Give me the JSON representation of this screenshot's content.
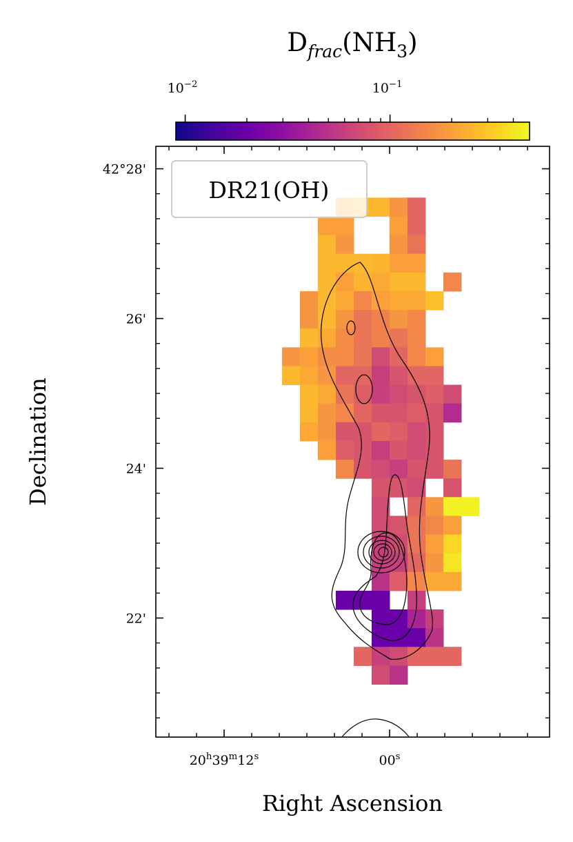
{
  "chart_data": {
    "type": "heatmap",
    "title": [
      {
        "text": "D"
      },
      {
        "text": "frac",
        "style": "sub-italic"
      },
      {
        "text": "(NH"
      },
      {
        "text": "3",
        "style": "sub"
      },
      {
        "text": ")"
      }
    ],
    "legend_label": "DR21(OH)",
    "xlabel": "Right Ascension",
    "ylabel": "Declination",
    "x": [
      7.15,
      5.85,
      4.55,
      3.25,
      1.95,
      0.65,
      -0.65,
      -1.95,
      -3.25,
      -4.55,
      -5.85
    ],
    "y": [
      27.49,
      27.24,
      26.99,
      26.74,
      26.49,
      26.24,
      25.99,
      25.74,
      25.49,
      25.24,
      24.99,
      24.74,
      24.49,
      24.24,
      23.99,
      23.74,
      23.49,
      23.24,
      22.99,
      22.74,
      22.49,
      22.24,
      21.99,
      21.74,
      21.49,
      21.24
    ],
    "z": [
      [
        null,
        null,
        null,
        0.22,
        0.26,
        0.26,
        0.18,
        0.1,
        null,
        null,
        null
      ],
      [
        null,
        null,
        0.2,
        0.2,
        null,
        null,
        0.2,
        0.1,
        null,
        null,
        null
      ],
      [
        null,
        null,
        0.26,
        0.18,
        null,
        null,
        0.18,
        0.12,
        null,
        null,
        null
      ],
      [
        null,
        null,
        0.26,
        0.26,
        0.26,
        0.25,
        0.2,
        0.2,
        null,
        null,
        null
      ],
      [
        null,
        null,
        0.26,
        0.2,
        0.25,
        0.22,
        0.26,
        0.26,
        null,
        0.15,
        null
      ],
      [
        null,
        0.18,
        0.26,
        0.22,
        0.15,
        0.2,
        0.22,
        0.22,
        0.28,
        null,
        null
      ],
      [
        null,
        0.18,
        0.26,
        0.18,
        0.12,
        0.14,
        0.18,
        0.15,
        null,
        null,
        null
      ],
      [
        null,
        0.26,
        0.22,
        0.16,
        0.12,
        0.14,
        0.12,
        0.15,
        null,
        null,
        null
      ],
      [
        0.18,
        0.2,
        0.16,
        0.16,
        0.12,
        0.07,
        0.1,
        0.15,
        0.2,
        null,
        null
      ],
      [
        0.26,
        0.22,
        0.18,
        0.1,
        0.1,
        0.06,
        0.08,
        0.1,
        0.1,
        null,
        null
      ],
      [
        null,
        0.26,
        0.22,
        0.12,
        0.09,
        0.06,
        0.07,
        0.08,
        0.09,
        0.07,
        null
      ],
      [
        null,
        0.26,
        0.18,
        0.15,
        0.1,
        0.08,
        0.08,
        0.09,
        0.08,
        0.045,
        null
      ],
      [
        null,
        0.22,
        0.18,
        0.08,
        0.08,
        0.1,
        0.09,
        0.07,
        0.08,
        null,
        null
      ],
      [
        null,
        null,
        0.2,
        0.09,
        0.08,
        0.06,
        0.08,
        0.07,
        0.08,
        null,
        null
      ],
      [
        null,
        null,
        null,
        0.15,
        0.08,
        0.07,
        0.06,
        0.08,
        0.08,
        0.12,
        null
      ],
      [
        null,
        null,
        null,
        null,
        null,
        0.08,
        0.08,
        0.07,
        null,
        0.08,
        null
      ],
      [
        null,
        null,
        null,
        null,
        null,
        0.07,
        null,
        0.1,
        0.18,
        0.45,
        0.45
      ],
      [
        null,
        null,
        null,
        null,
        null,
        0.07,
        0.08,
        0.12,
        0.15,
        0.2,
        null
      ],
      [
        null,
        null,
        null,
        null,
        null,
        0.06,
        0.07,
        0.12,
        0.2,
        0.35,
        null
      ],
      [
        null,
        null,
        null,
        null,
        null,
        0.06,
        0.06,
        0.1,
        0.18,
        0.4,
        null
      ],
      [
        null,
        null,
        null,
        null,
        null,
        0.05,
        0.09,
        0.15,
        0.22,
        0.22,
        null
      ],
      [
        null,
        null,
        null,
        0.02,
        0.02,
        0.02,
        null,
        0.06,
        null,
        null,
        null
      ],
      [
        null,
        null,
        null,
        null,
        null,
        0.02,
        0.02,
        0.04,
        0.06,
        null,
        null
      ],
      [
        null,
        null,
        null,
        null,
        null,
        0.02,
        0.02,
        0.02,
        0.05,
        null,
        null
      ],
      [
        null,
        null,
        null,
        null,
        0.1,
        0.06,
        0.07,
        0.1,
        0.1,
        0.1,
        null
      ],
      [
        null,
        null,
        null,
        null,
        null,
        0.07,
        0.05,
        null,
        null,
        null,
        null
      ]
    ],
    "xlim": [
      16.95,
      -11.6
    ],
    "ylim": [
      20.41,
      28.3
    ],
    "xticks": [
      {
        "value": 12,
        "label": [
          "20",
          "h",
          "39",
          "m",
          "12",
          "s"
        ]
      },
      {
        "value": 0,
        "label": [
          "00",
          "s"
        ]
      }
    ],
    "xminorticks": [
      16,
      14,
      10,
      8,
      6,
      4,
      2,
      -2,
      -4,
      -6,
      -8,
      -10
    ],
    "yticks": [
      {
        "value": 28,
        "label": "42°28'"
      },
      {
        "value": 26,
        "label": "26'"
      },
      {
        "value": 24,
        "label": "24'"
      },
      {
        "value": 22,
        "label": "22'"
      }
    ],
    "yminorticks": [
      27.667,
      27.333,
      27,
      26.667,
      26.333,
      25.667,
      25.333,
      25,
      24.667,
      24.333,
      23.667,
      23.333,
      23,
      22.667,
      22.333,
      21.667,
      21.333,
      21,
      20.667
    ],
    "colorbar": {
      "scale": "log",
      "colormap": "plasma",
      "lim": [
        0.009,
        0.48
      ],
      "ticks": [
        {
          "value": 0.01,
          "label": [
            "10",
            "−2"
          ]
        },
        {
          "value": 0.1,
          "label": [
            "10",
            "−1"
          ]
        }
      ],
      "minorticks": [
        0.02,
        0.03,
        0.04,
        0.05,
        0.06,
        0.07,
        0.08,
        0.09,
        0.2,
        0.3,
        0.4
      ]
    }
  }
}
